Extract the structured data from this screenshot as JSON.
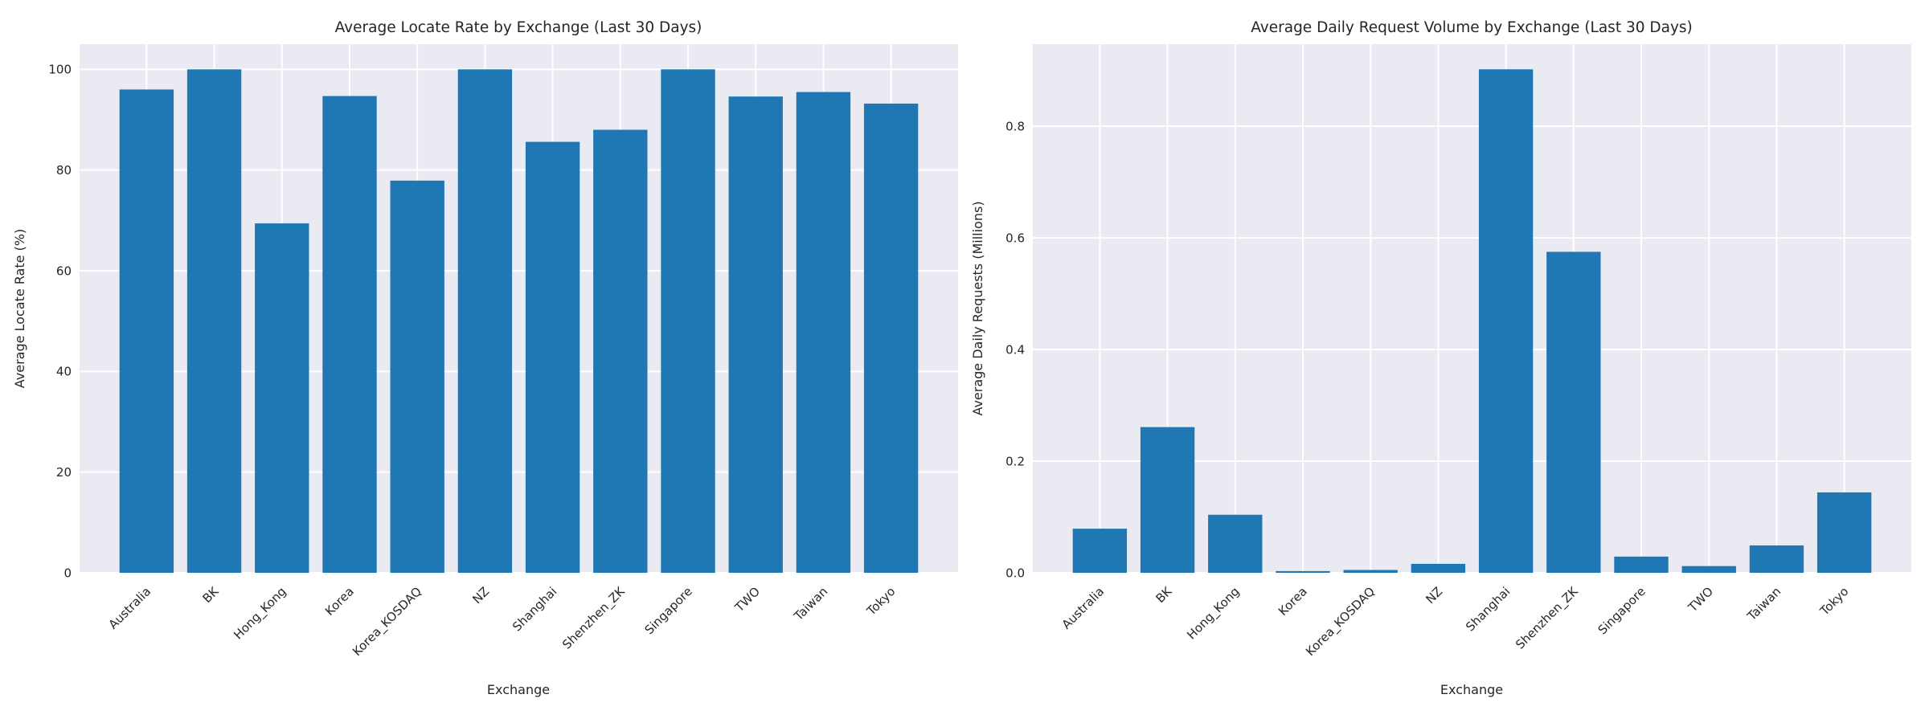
{
  "figure": {
    "background": "#ffffff",
    "axes_background": "#eaeaf2",
    "grid_color": "#ffffff",
    "bar_color": "#1f77b4",
    "text_color": "#262626"
  },
  "chart_data": [
    {
      "id": "locate-rate",
      "type": "bar",
      "title": "Average Locate Rate by Exchange (Last 30 Days)",
      "xlabel": "Exchange",
      "ylabel": "Average Locate Rate (%)",
      "categories": [
        "Australia",
        "BK",
        "Hong_Kong",
        "Korea",
        "Korea_KOSDAQ",
        "NZ",
        "Shanghai",
        "Shenzhen_ZK",
        "Singapore",
        "TWO",
        "Taiwan",
        "Tokyo"
      ],
      "values": [
        96.0,
        100.0,
        69.4,
        94.7,
        77.9,
        100.0,
        85.6,
        88.0,
        100.0,
        94.6,
        95.5,
        93.2
      ],
      "ylim": [
        0,
        105
      ],
      "yticks": [
        0,
        20,
        40,
        60,
        80,
        100
      ],
      "ytick_labels": [
        "0",
        "20",
        "40",
        "60",
        "80",
        "100"
      ],
      "grid": true,
      "legend": "none",
      "bar_color": "#1f77b4"
    },
    {
      "id": "request-volume",
      "type": "bar",
      "title": "Average Daily Request Volume by Exchange (Last 30 Days)",
      "xlabel": "Exchange",
      "ylabel": "Average Daily Requests (Millions)",
      "categories": [
        "Australia",
        "BK",
        "Hong_Kong",
        "Korea",
        "Korea_KOSDAQ",
        "NZ",
        "Shanghai",
        "Shenzhen_ZK",
        "Singapore",
        "TWO",
        "Taiwan",
        "Tokyo"
      ],
      "values": [
        0.079,
        0.261,
        0.104,
        0.003,
        0.005,
        0.016,
        0.902,
        0.575,
        0.029,
        0.012,
        0.049,
        0.144
      ],
      "ylim": [
        0,
        0.947
      ],
      "yticks": [
        0.0,
        0.2,
        0.4,
        0.6,
        0.8
      ],
      "ytick_labels": [
        "0.0",
        "0.2",
        "0.4",
        "0.6",
        "0.8"
      ],
      "grid": true,
      "legend": "none",
      "bar_color": "#1f77b4"
    }
  ]
}
